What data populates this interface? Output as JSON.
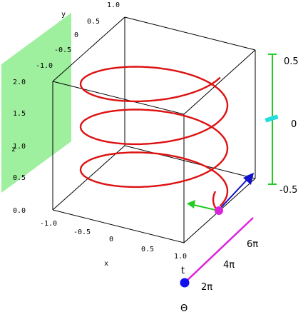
{
  "axes": {
    "x": {
      "name": "x",
      "ticks": [
        "-1.0",
        "-0.5",
        "0",
        "0.5",
        "1.0"
      ]
    },
    "y": {
      "name": "y",
      "ticks": [
        "-1.0",
        "-0.5",
        "0",
        "0.5",
        "1.0"
      ]
    },
    "z": {
      "name": "z",
      "ticks": [
        "0.0",
        "0.5",
        "1.0",
        "1.5",
        "2.0"
      ]
    }
  },
  "slider_t": {
    "name": "t",
    "ticks": [
      "2π",
      "4π",
      "6π"
    ]
  },
  "theta_label": "Θ",
  "side_scale": {
    "ticks": [
      "0.5",
      "0",
      "-0.5"
    ]
  },
  "colors": {
    "helix": "#dd1111",
    "plane": "#99ee99",
    "slider": "#dd22dd",
    "knob_start": "#1111ee",
    "arrow_green": "#22cc22",
    "arrow_blue": "#1111cc",
    "scale_line": "#22cc22",
    "scale_marker": "#22dddd"
  },
  "helix": {
    "turns": 3,
    "z_range": [
      0.0,
      2.0
    ],
    "radius": 1.0
  }
}
